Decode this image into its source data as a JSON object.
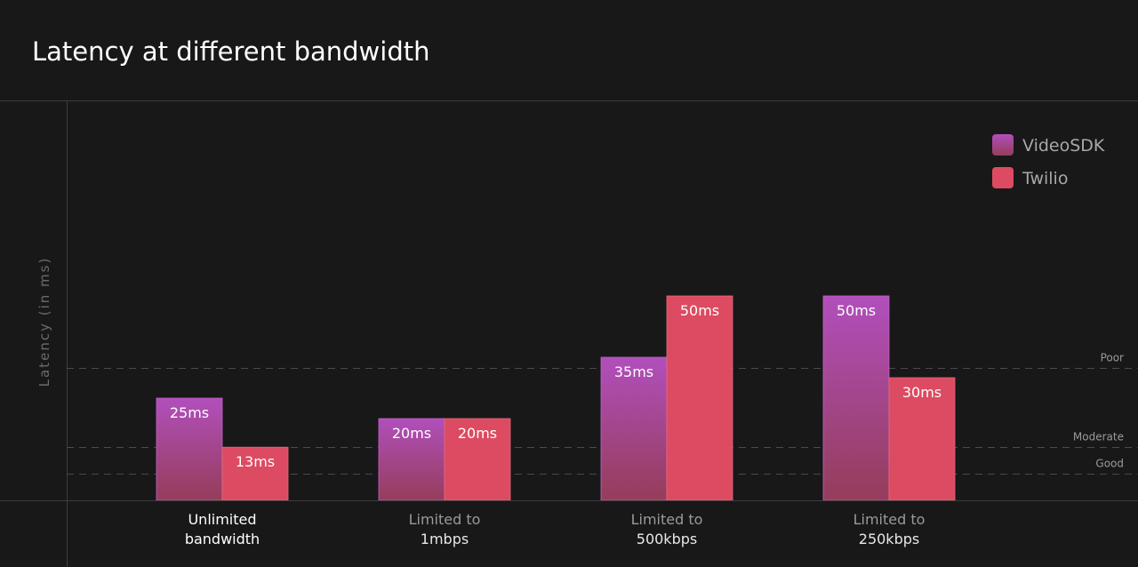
{
  "chart_data": {
    "type": "bar",
    "title": "Latency at different bandwidth",
    "ylabel": "Latency (in ms)",
    "xlabel": "",
    "ylim": [
      0,
      75
    ],
    "grid": false,
    "categories": [
      {
        "line1": "Unlimited",
        "line2": "bandwidth",
        "highlighted": true
      },
      {
        "line1": "Limited to",
        "line2": "1mbps",
        "highlighted": false
      },
      {
        "line1": "Limited to",
        "line2": "500kbps",
        "highlighted": false
      },
      {
        "line1": "Limited to",
        "line2": "250kbps",
        "highlighted": false
      }
    ],
    "series": [
      {
        "name": "VideoSDK",
        "values": [
          25,
          20,
          35,
          50
        ],
        "labels": [
          "25ms",
          "20ms",
          "35ms",
          "50ms"
        ],
        "color_top": "#b14fbc",
        "color_bottom": "#953d5a"
      },
      {
        "name": "Twilio",
        "values": [
          13,
          20,
          50,
          30
        ],
        "labels": [
          "13ms",
          "20ms",
          "50ms",
          "30ms"
        ],
        "color_top": "#dc4b61",
        "color_bottom": "#dc4b61"
      }
    ],
    "thresholds": [
      {
        "label": "Poor",
        "value": 32.5
      },
      {
        "label": "Moderate",
        "value": 13
      },
      {
        "label": "Good",
        "value": 6.5
      }
    ],
    "legend_position": "top-right"
  },
  "colors": {
    "background": "#181818",
    "axis_line": "#3d3d3d",
    "threshold_line": "#4a4a4a",
    "threshold_text": "#9a9a9a",
    "ylabel_text": "#6b6b6b",
    "legend_text": "#a8a8a8",
    "tick_text_highlighted": "#ffffff",
    "tick_text_muted": "#9a9a9a",
    "tick_text_strong": "#e8e8e8"
  }
}
